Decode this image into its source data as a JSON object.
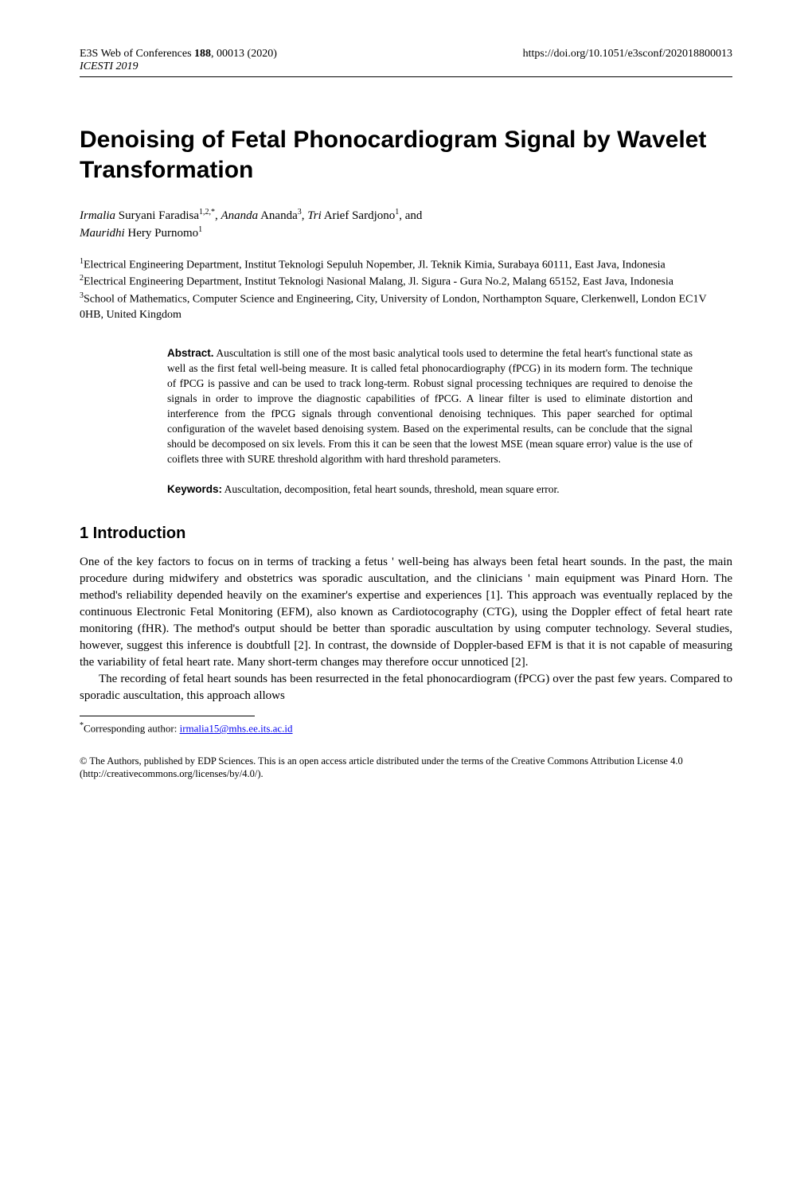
{
  "header": {
    "journal_line": "E3S Web of Conferences",
    "volume_bold": "188",
    "article_and_year": ", 00013 (2020)",
    "conference": "ICESTI 2019",
    "doi": "https://doi.org/10.1051/e3sconf/202018800013"
  },
  "title": "Denoising of Fetal Phonocardiogram Signal by Wavelet Transformation",
  "authors": {
    "a1_first": "Irmalia",
    "a1_rest": " Suryani Faradisa",
    "a1_sup": "1,2,*",
    "sep1": ", ",
    "a2_first": "Ananda",
    "a2_rest": " Ananda",
    "a2_sup": "3",
    "sep2": ", ",
    "a3_first": "Tri",
    "a3_rest": " Arief Sardjono",
    "a3_sup": "1",
    "sep3": ", and ",
    "a4_first": "Mauridhi",
    "a4_rest": " Hery Purnomo",
    "a4_sup": "1"
  },
  "affiliations": {
    "s1": "1",
    "aff1": "Electrical Engineering Department, Institut Teknologi Sepuluh Nopember, Jl. Teknik Kimia, Surabaya 60111, East Java, Indonesia",
    "s2": "2",
    "aff2": "Electrical Engineering Department, Institut Teknologi Nasional Malang, Jl. Sigura - Gura No.2, Malang 65152, East Java, Indonesia",
    "s3": "3",
    "aff3": "School of Mathematics, Computer Science and Engineering, City, University of London, Northampton Square, Clerkenwell, London EC1V 0HB, United Kingdom"
  },
  "abstract": {
    "label": "Abstract.",
    "text": " Auscultation is still one of the most basic analytical tools used to determine the fetal heart's functional state as well as the first fetal well-being measure. It is called fetal phonocardiography (fPCG) in its modern form. The technique of fPCG is passive and can be used to track long-term. Robust signal processing techniques are required to denoise the signals in order to improve the diagnostic capabilities of fPCG. A linear filter is used to eliminate distortion and interference from the fPCG signals through conventional denoising techniques. This paper searched for optimal configuration of the wavelet based denoising system. Based on the experimental results, can be conclude that the signal should be decomposed on six levels. From this it can be seen that the lowest MSE (mean square error) value is the use of coiflets three with SURE threshold algorithm with hard threshold parameters."
  },
  "keywords": {
    "label": "Keywords:",
    "text": "  Auscultation, decomposition, fetal heart sounds, threshold, mean square error."
  },
  "section1_heading": "1 Introduction",
  "body": {
    "p1": "One of the key factors to focus on in terms of tracking a fetus ' well-being has always been fetal heart sounds. In the past, the main procedure during midwifery and obstetrics was sporadic auscultation, and the clinicians ' main equipment was Pinard Horn. The method's reliability depended heavily on the examiner's expertise and experiences [1]. This approach was eventually replaced by the continuous Electronic Fetal Monitoring (EFM), also known as Cardiotocography (CTG), using the Doppler effect of fetal heart rate monitoring (fHR). The method's output should be better than sporadic auscultation by using computer technology. Several studies, however, suggest this inference is doubtfull [2]. In contrast, the downside of Doppler-based EFM is that it is not capable of measuring the variability of fetal heart rate. Many short-term changes may therefore occur unnoticed [2].",
    "p2": "The recording of fetal heart sounds has been resurrected in the fetal phonocardiogram (fPCG) over the past few years. Compared to sporadic auscultation, this approach allows"
  },
  "footnote": {
    "marker": "*",
    "label": "Corresponding author: ",
    "email": "irmalia15@mhs.ee.its.ac.id"
  },
  "license": "© The Authors, published by EDP Sciences. This is an open access article distributed under the terms of the Creative Commons Attribution License 4.0 (http://creativecommons.org/licenses/by/4.0/)."
}
